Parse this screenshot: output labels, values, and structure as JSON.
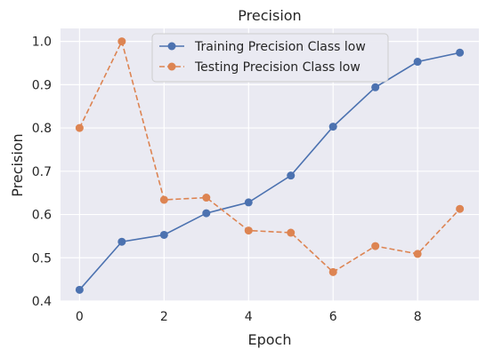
{
  "chart_data": {
    "type": "line",
    "title": "Precision",
    "xlabel": "Epoch",
    "ylabel": "Precision",
    "xlim": [
      -0.45,
      9.45
    ],
    "ylim": [
      0.4,
      1.03
    ],
    "xticks": [
      0,
      2,
      4,
      6,
      8
    ],
    "yticks": [
      0.4,
      0.5,
      0.6,
      0.7,
      0.8,
      0.9,
      1.0
    ],
    "grid": true,
    "legend_position": "top-center",
    "x": [
      0,
      1,
      2,
      3,
      4,
      5,
      6,
      7,
      8,
      9
    ],
    "series": [
      {
        "name": "Training Precision Class low",
        "color": "#4c72b0",
        "line_style": "solid",
        "marker": "circle",
        "values": [
          0.426,
          0.537,
          0.553,
          0.603,
          0.628,
          0.69,
          0.803,
          0.894,
          0.953,
          0.974
        ]
      },
      {
        "name": "Testing Precision Class low",
        "color": "#dd8452",
        "line_style": "dashed",
        "marker": "circle",
        "values": [
          0.8,
          1.0,
          0.634,
          0.639,
          0.563,
          0.558,
          0.467,
          0.527,
          0.509,
          0.613
        ]
      }
    ]
  }
}
